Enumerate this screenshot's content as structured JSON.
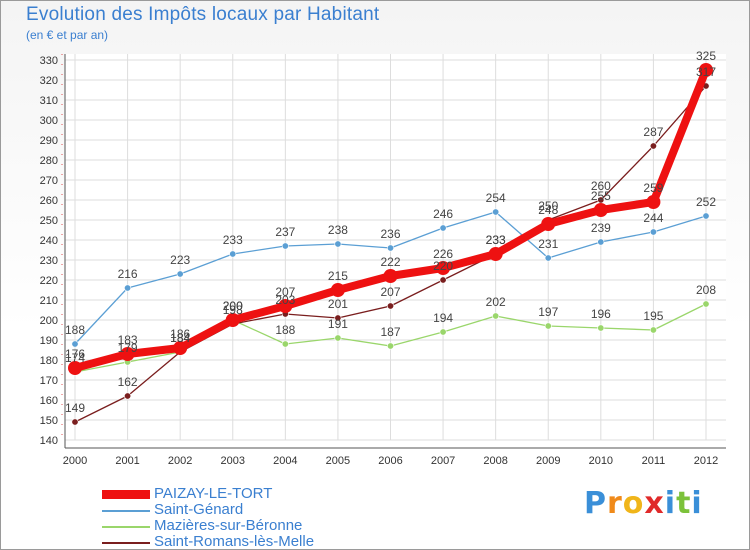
{
  "chart_data": {
    "type": "line",
    "title": "Evolution des Impôts locaux par Habitant",
    "subtitle": "(en € et par an)",
    "xlabel": "",
    "ylabel": "",
    "ylim": [
      140,
      330
    ],
    "yticks": [
      140,
      150,
      160,
      170,
      180,
      190,
      200,
      210,
      220,
      230,
      240,
      250,
      260,
      270,
      280,
      290,
      300,
      310,
      320,
      330
    ],
    "categories": [
      "2000",
      "2001",
      "2002",
      "2003",
      "2004",
      "2005",
      "2006",
      "2007",
      "2008",
      "2009",
      "2010",
      "2011",
      "2012"
    ],
    "grid": true,
    "series": [
      {
        "name": "Saint-Génard",
        "color": "#5b9fd4",
        "values": [
          188,
          216,
          223,
          233,
          237,
          238,
          236,
          246,
          254,
          231,
          239,
          244,
          252
        ]
      },
      {
        "name": "Mazières-sur-Béronne",
        "color": "#9ad66b",
        "values": [
          174,
          179,
          184,
          200,
          188,
          191,
          187,
          194,
          202,
          197,
          196,
          195,
          208
        ]
      },
      {
        "name": "Saint-Romans-lès-Melle",
        "color": "#7a1e1e",
        "values": [
          149,
          162,
          184,
          198,
          203,
          201,
          207,
          220,
          233,
          250,
          260,
          287,
          317
        ]
      },
      {
        "name": "PAIZAY-LE-TORT",
        "color": "#ee1111",
        "values": [
          176,
          183,
          186,
          200,
          207,
          215,
          222,
          226,
          233,
          248,
          255,
          259,
          325
        ]
      }
    ]
  },
  "legend": {
    "items": [
      {
        "label": "PAIZAY-LE-TORT",
        "color": "#ee1111"
      },
      {
        "label": "Saint-Génard",
        "color": "#5b9fd4"
      },
      {
        "label": "Mazières-sur-Béronne",
        "color": "#9ad66b"
      },
      {
        "label": "Saint-Romans-lès-Melle",
        "color": "#7a1e1e"
      }
    ]
  },
  "logo": {
    "letters": [
      "P",
      "r",
      "o",
      "x",
      "i",
      "t",
      "i"
    ],
    "colors": [
      "#3a8fd8",
      "#f08a1a",
      "#f0b51a",
      "#e02a2a",
      "#3a8fd8",
      "#7cc23a",
      "#3a8fd8"
    ]
  }
}
